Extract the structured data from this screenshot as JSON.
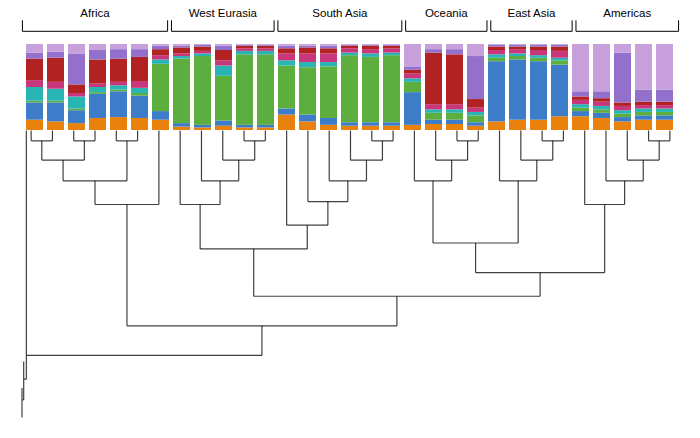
{
  "chart_data": {
    "type": "bar",
    "stacked": true,
    "tick_labels": false,
    "grid": false,
    "ylim": [
      0,
      1
    ],
    "categories": [
      null,
      null,
      null,
      null,
      null,
      null,
      null,
      null,
      null,
      null,
      null,
      null,
      null,
      null,
      null,
      null,
      null,
      null,
      null,
      null,
      null,
      null,
      null,
      null,
      null,
      null,
      null,
      null,
      null,
      null,
      null
    ],
    "annotations": [
      {
        "text": "Africa",
        "first": 0,
        "last": 6
      },
      {
        "text": "West Eurasia",
        "first": 7,
        "last": 11
      },
      {
        "text": "South Asia",
        "first": 12,
        "last": 17
      },
      {
        "text": "Oceania",
        "first": 18,
        "last": 21
      },
      {
        "text": "East Asia",
        "first": 22,
        "last": 25
      },
      {
        "text": "Americas",
        "first": 26,
        "last": 30
      }
    ],
    "series": [
      {
        "color": "#E8820C",
        "values": [
          0.12,
          0.1,
          0.08,
          0.14,
          0.15,
          0.14,
          0.12,
          0.04,
          0.03,
          0.05,
          0.03,
          0.03,
          0.18,
          0.1,
          0.06,
          0.05,
          0.05,
          0.05,
          0.06,
          0.07,
          0.07,
          0.05,
          0.1,
          0.12,
          0.12,
          0.16,
          0.16,
          0.14,
          0.1,
          0.12,
          0.12
        ]
      },
      {
        "color": "#3D7CC9",
        "values": [
          0.2,
          0.22,
          0.15,
          0.28,
          0.3,
          0.26,
          0.1,
          0.04,
          0.03,
          0.06,
          0.03,
          0.03,
          0.07,
          0.08,
          0.08,
          0.04,
          0.04,
          0.04,
          0.38,
          0.05,
          0.05,
          0.04,
          0.7,
          0.7,
          0.68,
          0.6,
          0.06,
          0.06,
          0.05,
          0.05,
          0.05
        ]
      },
      {
        "color": "#5DAD3F",
        "values": [
          0.02,
          0.02,
          0.02,
          0.02,
          0.02,
          0.03,
          0.55,
          0.75,
          0.8,
          0.52,
          0.82,
          0.82,
          0.5,
          0.55,
          0.6,
          0.78,
          0.76,
          0.78,
          0.12,
          0.08,
          0.08,
          0.08,
          0.04,
          0.04,
          0.04,
          0.05,
          0.04,
          0.04,
          0.04,
          0.04,
          0.04
        ]
      },
      {
        "color": "#2AB5B5",
        "values": [
          0.16,
          0.14,
          0.14,
          0.06,
          0.05,
          0.06,
          0.05,
          0.03,
          0.03,
          0.12,
          0.04,
          0.04,
          0.06,
          0.06,
          0.05,
          0.03,
          0.04,
          0.03,
          0.04,
          0.04,
          0.04,
          0.04,
          0.04,
          0.03,
          0.03,
          0.03,
          0.04,
          0.04,
          0.04,
          0.04,
          0.04
        ]
      },
      {
        "color": "#C8367B",
        "values": [
          0.08,
          0.08,
          0.04,
          0.04,
          0.04,
          0.08,
          0.05,
          0.03,
          0.03,
          0.06,
          0.03,
          0.03,
          0.08,
          0.1,
          0.1,
          0.05,
          0.05,
          0.05,
          0.06,
          0.06,
          0.06,
          0.05,
          0.05,
          0.05,
          0.06,
          0.08,
          0.05,
          0.05,
          0.05,
          0.04,
          0.04
        ]
      },
      {
        "color": "#B22222",
        "values": [
          0.25,
          0.28,
          0.1,
          0.28,
          0.27,
          0.28,
          0.07,
          0.07,
          0.05,
          0.12,
          0.03,
          0.03,
          0.06,
          0.07,
          0.06,
          0.03,
          0.04,
          0.03,
          0.04,
          0.6,
          0.58,
          0.1,
          0.04,
          0.03,
          0.04,
          0.05,
          0.04,
          0.04,
          0.04,
          0.04,
          0.04
        ]
      },
      {
        "color": "#9370CC",
        "values": [
          0.07,
          0.07,
          0.36,
          0.11,
          0.11,
          0.09,
          0.04,
          0.02,
          0.02,
          0.05,
          0.01,
          0.01,
          0.03,
          0.02,
          0.03,
          0.01,
          0.01,
          0.01,
          0.04,
          0.04,
          0.06,
          0.5,
          0.02,
          0.02,
          0.02,
          0.02,
          0.06,
          0.08,
          0.58,
          0.14,
          0.14
        ]
      },
      {
        "color": "#C8A0DC",
        "values": [
          0.1,
          0.09,
          0.11,
          0.07,
          0.06,
          0.06,
          0.02,
          0.02,
          0.01,
          0.02,
          0.01,
          0.01,
          0.02,
          0.02,
          0.02,
          0.01,
          0.01,
          0.01,
          0.26,
          0.06,
          0.06,
          0.14,
          0.01,
          0.01,
          0.01,
          0.01,
          0.55,
          0.55,
          0.1,
          0.53,
          0.53
        ]
      }
    ]
  }
}
